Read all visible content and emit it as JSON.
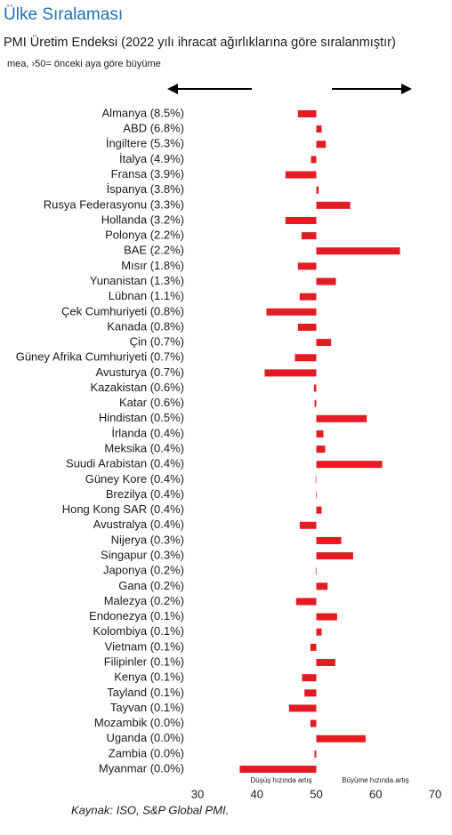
{
  "chart_data": {
    "type": "hbar",
    "title": "Ülke Sıralaması",
    "subtitle": "PMI Üretim Endeksi (2022 yılı ihracat ağırlıklarına göre sıralanmıştır)",
    "note": "mea, ›50= önceki aya göre büyüme",
    "left_annotation": "Düşüş hızında artış",
    "right_annotation": "Büyüme hızında artış",
    "source": "Kaynak: ISO, S&P Global PMI.",
    "categories": [
      "Almanya (8.5%)",
      "ABD (6.8%)",
      "İngiltere (5.3%)",
      "İtalya (4.9%)",
      "Fransa (3.9%)",
      "İspanya (3.8%)",
      "Rusya Federasyonu (3.3%)",
      "Hollanda (3.2%)",
      "Polonya (2.2%)",
      "BAE (2.2%)",
      "Mısır (1.8%)",
      "Yunanistan (1.3%)",
      "Lübnan (1.1%)",
      "Çek Cumhuriyeti (0.8%)",
      "Kanada (0.8%)",
      "Çin (0.7%)",
      "Güney Afrika Cumhuriyeti (0.7%)",
      "Avusturya (0.7%)",
      "Kazakistan (0.6%)",
      "Katar (0.6%)",
      "Hindistan (0.5%)",
      "İrlanda (0.4%)",
      "Meksika (0.4%)",
      "Suudi Arabistan (0.4%)",
      "Güney Kore (0.4%)",
      "Brezilya (0.4%)",
      "Hong Kong SAR (0.4%)",
      "Avustralya (0.4%)",
      "Nijerya (0.3%)",
      "Singapur (0.3%)",
      "Japonya (0.2%)",
      "Gana (0.2%)",
      "Malezya (0.2%)",
      "Endonezya (0.1%)",
      "Kolombiya (0.1%)",
      "Vietnam (0.1%)",
      "Filipinler (0.1%)",
      "Kenya (0.1%)",
      "Tayland (0.1%)",
      "Tayvan (0.1%)",
      "Mozambik (0.0%)",
      "Uganda (0.0%)",
      "Zambia (0.0%)",
      "Myanmar (0.0%)"
    ],
    "values": [
      46.9,
      50.9,
      51.6,
      49.1,
      44.8,
      50.4,
      55.7,
      44.8,
      47.5,
      64.1,
      46.9,
      53.3,
      47.2,
      41.6,
      46.9,
      52.5,
      46.4,
      41.3,
      49.6,
      49.7,
      58.5,
      51.2,
      51.5,
      61.1,
      49.9,
      50.1,
      50.9,
      47.2,
      54.2,
      56.2,
      49.9,
      51.9,
      46.6,
      53.5,
      50.9,
      49.0,
      53.2,
      47.6,
      48.0,
      45.4,
      49.0,
      58.3,
      49.7,
      37.1
    ],
    "base": 50,
    "color": "#e31b23",
    "xlim": [
      30,
      70
    ],
    "xticks": [
      30,
      40,
      50,
      60,
      70
    ]
  }
}
